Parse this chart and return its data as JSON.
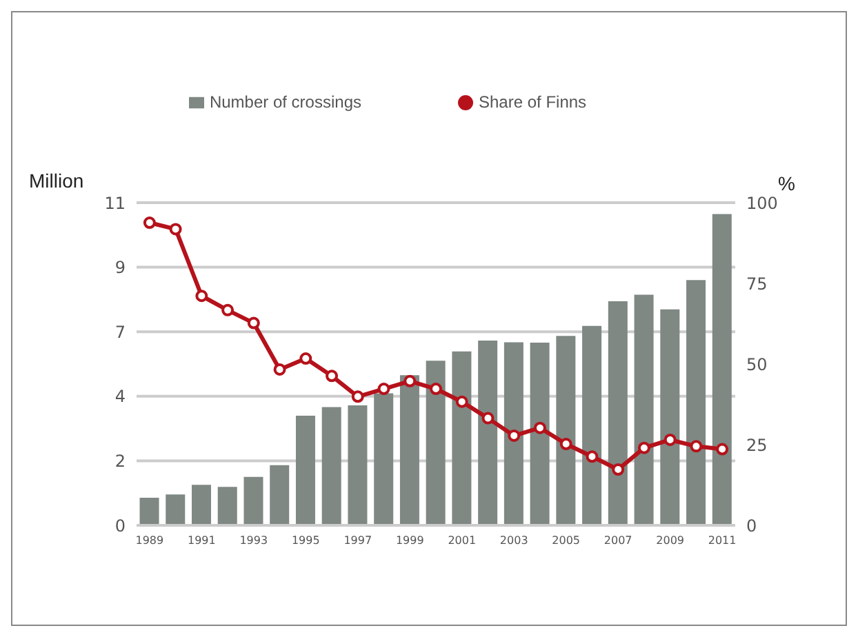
{
  "chart_data": {
    "type": "bar",
    "ylabel": "Million",
    "y2label": "%",
    "categories": [
      "1989",
      null,
      "1991",
      null,
      "1993",
      null,
      "1995",
      null,
      "1997",
      null,
      "1999",
      null,
      "2001",
      null,
      "2003",
      null,
      "2005",
      null,
      "2007",
      null,
      "2009",
      null,
      "2011"
    ],
    "series": [
      {
        "name": "Number of crossings",
        "color": "#7f8883",
        "values": [
          0.94,
          1.05,
          1.38,
          1.31,
          1.65,
          2.05,
          3.74,
          4.03,
          4.09,
          4.5,
          5.12,
          5.61,
          5.93,
          6.3,
          6.24,
          6.23,
          6.46,
          6.8,
          7.64,
          7.86,
          7.36,
          8.36,
          10.61
        ]
      },
      {
        "name": "Share of Finns",
        "type": "line",
        "axis": "y2",
        "color": "#b5121b",
        "values": [
          93.8,
          91.8,
          71.1,
          66.7,
          62.7,
          48.3,
          51.7,
          46.3,
          39.9,
          42.3,
          44.7,
          42.3,
          38.3,
          33.2,
          27.8,
          30.2,
          25.2,
          21.3,
          17.3,
          24,
          26.5,
          24.5,
          23.6
        ]
      }
    ],
    "ylim": [
      0,
      11
    ],
    "yticks": [
      0,
      {
        "value": 2.2,
        "label": "2"
      },
      {
        "value": 4.4,
        "label": "4"
      },
      {
        "value": 6.6,
        "label": "7"
      },
      {
        "value": 8.8,
        "label": "9"
      },
      11
    ],
    "y2lim": [
      0,
      100
    ],
    "y2ticks": [
      0,
      25,
      50,
      75,
      100
    ],
    "grid": "y",
    "legend": "top",
    "marker": "circle",
    "line_style": "solid"
  }
}
